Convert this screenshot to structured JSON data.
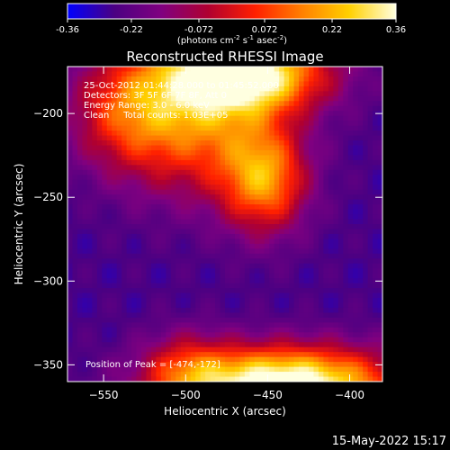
{
  "chart_data": {
    "type": "heatmap",
    "title": "Reconstructed RHESSI Image",
    "xlabel": "Heliocentric X (arcsec)",
    "ylabel": "Heliocentric Y (arcsec)",
    "xlim": [
      -572,
      -380
    ],
    "ylim": [
      -360,
      -172
    ],
    "x_ticks": [
      -550,
      -500,
      -450,
      -400
    ],
    "y_ticks": [
      -350,
      -300,
      -250,
      -200
    ],
    "colorbar": {
      "min": -0.36,
      "max": 0.36,
      "ticks": [
        "-0.36",
        "-0.22",
        "-0.072",
        "0.072",
        "0.22",
        "0.36"
      ],
      "label_main": "(photons cm",
      "label_exp1": "-2",
      "label_mid": " s",
      "label_exp2": "-1",
      "label_tail": " asec",
      "label_exp3": "-2",
      "label_end": ")",
      "colormap": [
        "#0000ff",
        "#4b0082",
        "#800080",
        "#b00030",
        "#ff2000",
        "#ff8000",
        "#ffd000",
        "#ffffe0"
      ]
    },
    "annotations": [
      "25-Oct-2012 01:44:28.000 to 01:45:52.000",
      "Detectors: 3F 5F 6F 7F 8F, Att 0",
      "Energy Range: 3.0 - 6.0 keV",
      "Clean     Total counts: 1.03E+05"
    ],
    "peak_label": "Position of Peak = [-474,-172]",
    "peak": [
      -474,
      -172
    ],
    "sources": [
      {
        "x": -465,
        "y": -176,
        "sx": 35,
        "sy": 16,
        "amp": 0.62
      },
      {
        "x": -492,
        "y": -206,
        "sx": 34,
        "sy": 30,
        "amp": 0.36
      },
      {
        "x": -452,
        "y": -240,
        "sx": 18,
        "sy": 22,
        "amp": 0.4
      },
      {
        "x": -537,
        "y": -198,
        "sx": 24,
        "sy": 24,
        "amp": 0.26
      },
      {
        "x": -440,
        "y": -362,
        "sx": 48,
        "sy": 16,
        "amp": 0.7
      },
      {
        "x": -500,
        "y": -352,
        "sx": 18,
        "sy": 16,
        "amp": 0.18
      }
    ]
  },
  "footer_date": "15-May-2022 15:17"
}
